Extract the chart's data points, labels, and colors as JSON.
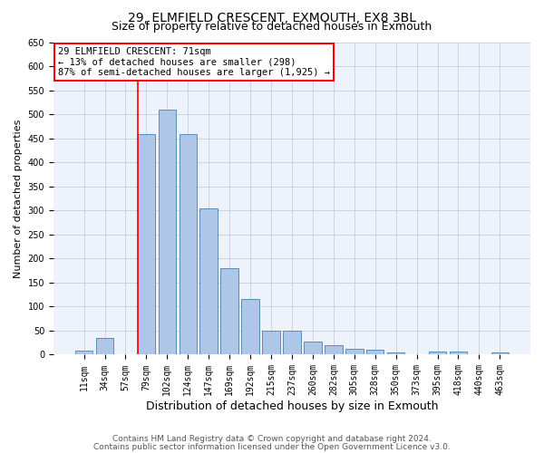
{
  "title_line1": "29, ELMFIELD CRESCENT, EXMOUTH, EX8 3BL",
  "title_line2": "Size of property relative to detached houses in Exmouth",
  "xlabel": "Distribution of detached houses by size in Exmouth",
  "ylabel": "Number of detached properties",
  "categories": [
    "11sqm",
    "34sqm",
    "57sqm",
    "79sqm",
    "102sqm",
    "124sqm",
    "147sqm",
    "169sqm",
    "192sqm",
    "215sqm",
    "237sqm",
    "260sqm",
    "282sqm",
    "305sqm",
    "328sqm",
    "350sqm",
    "373sqm",
    "395sqm",
    "418sqm",
    "440sqm",
    "463sqm"
  ],
  "values": [
    8,
    35,
    0,
    458,
    510,
    458,
    305,
    180,
    115,
    50,
    50,
    27,
    20,
    13,
    10,
    5,
    0,
    7,
    7,
    0,
    5
  ],
  "bar_color": "#aec6e8",
  "bar_edge_color": "#5b8db8",
  "grid_color": "#c8d4e8",
  "background_color": "#eef2fa",
  "vline_color": "red",
  "vline_x_index": 2.6,
  "annotation_line1": "29 ELMFIELD CRESCENT: 71sqm",
  "annotation_line2": "← 13% of detached houses are smaller (298)",
  "annotation_line3": "87% of semi-detached houses are larger (1,925) →",
  "ylim": [
    0,
    650
  ],
  "yticks": [
    0,
    50,
    100,
    150,
    200,
    250,
    300,
    350,
    400,
    450,
    500,
    550,
    600,
    650
  ],
  "footer_line1": "Contains HM Land Registry data © Crown copyright and database right 2024.",
  "footer_line2": "Contains public sector information licensed under the Open Government Licence v3.0.",
  "title_fontsize": 10,
  "subtitle_fontsize": 9,
  "ylabel_fontsize": 8,
  "xlabel_fontsize": 9,
  "tick_fontsize": 7,
  "annotation_fontsize": 7.5,
  "footer_fontsize": 6.5
}
